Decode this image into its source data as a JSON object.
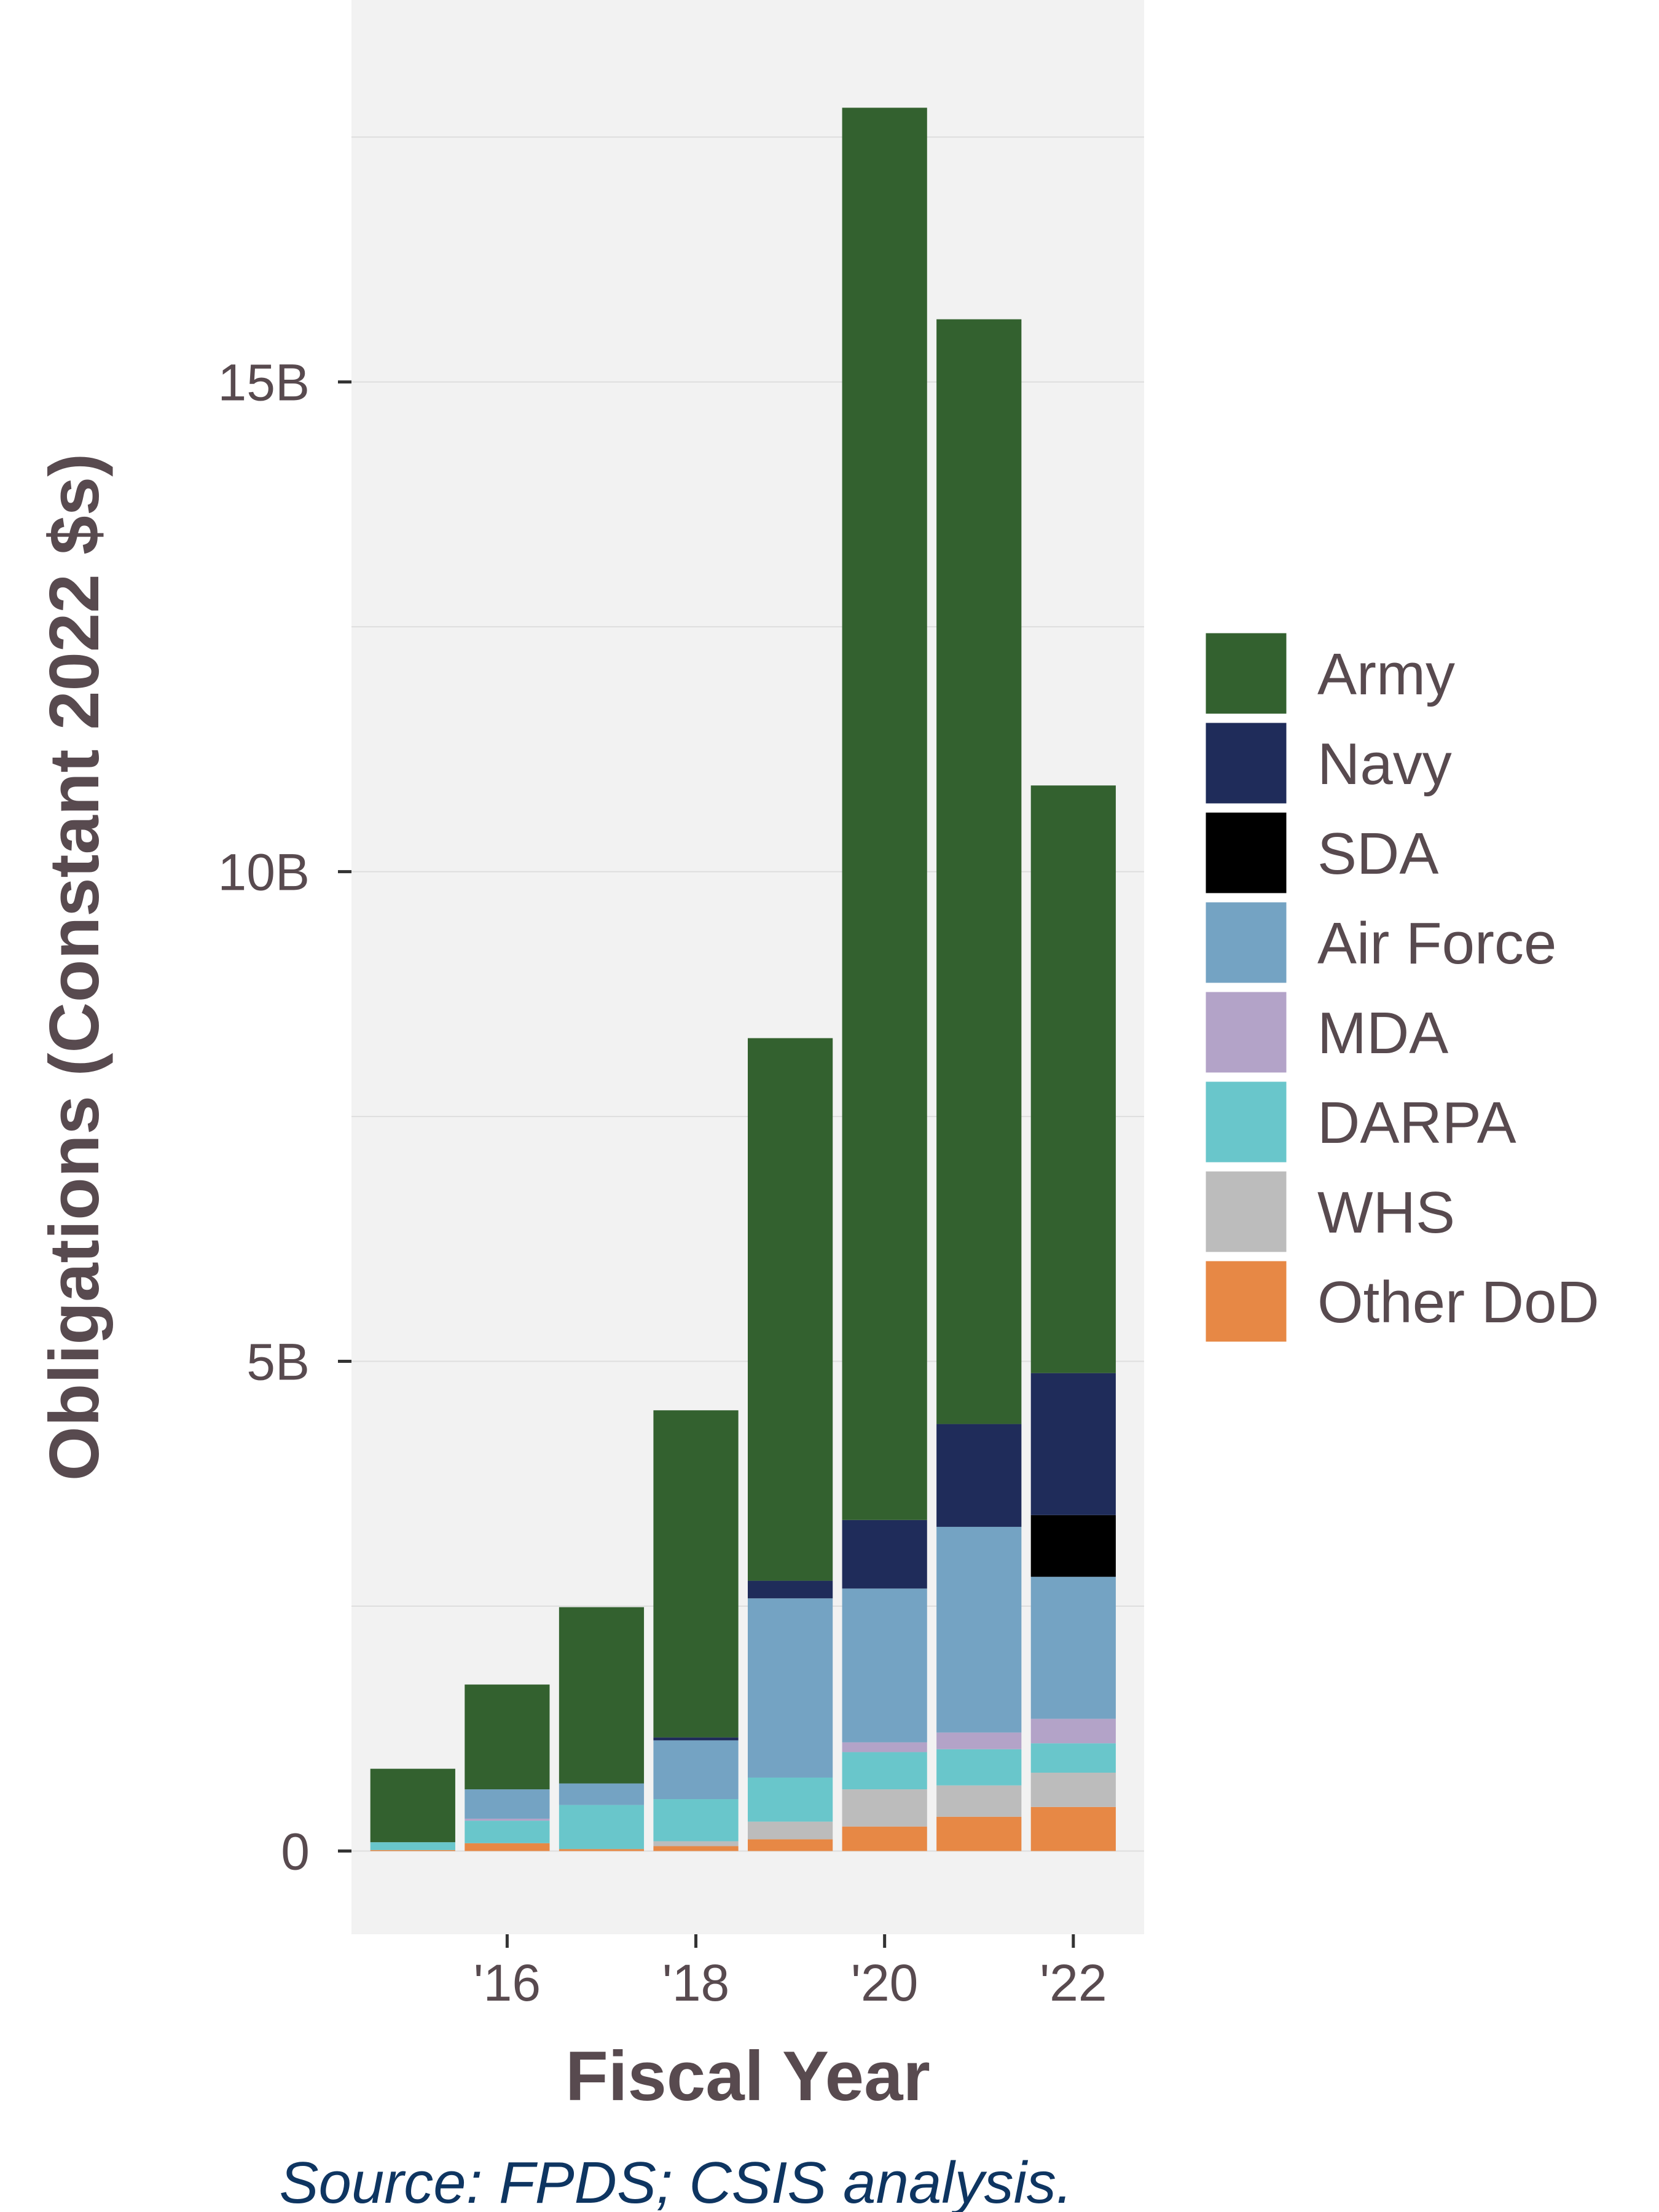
{
  "chart_data": {
    "type": "bar",
    "stacked": true,
    "x": [
      2015,
      2016,
      2017,
      2018,
      2019,
      2020,
      2021,
      2022
    ],
    "x_tick_values": [
      2016,
      2018,
      2020,
      2022
    ],
    "x_tick_labels": [
      "'16",
      "'18",
      "'20",
      "'22"
    ],
    "xlabel": "Fiscal Year",
    "ylabel": "Obligations (Constant 2022 $s)",
    "y_ticks": [
      0,
      5,
      10,
      15
    ],
    "y_tick_labels": [
      "0",
      "5B",
      "10B",
      "15B"
    ],
    "ylim": [
      -0.85,
      18.9
    ],
    "xlim": [
      2014.35,
      2022.75
    ],
    "y_unit": "billions",
    "grid": true,
    "legend_position": "right",
    "caption": "Source: FPDS; CSIS analysis.",
    "series": [
      {
        "name": "Other DoD",
        "color": "#e78845",
        "values": [
          0.01,
          0.08,
          0.02,
          0.05,
          0.12,
          0.25,
          0.35,
          0.45
        ]
      },
      {
        "name": "WHS",
        "color": "#bcbcbc",
        "values": [
          0.0,
          0.0,
          0.0,
          0.05,
          0.18,
          0.38,
          0.32,
          0.35
        ]
      },
      {
        "name": "DARPA",
        "color": "#69c6cb",
        "values": [
          0.08,
          0.23,
          0.45,
          0.43,
          0.45,
          0.38,
          0.37,
          0.3
        ]
      },
      {
        "name": "MDA",
        "color": "#b3a3c8",
        "values": [
          0.0,
          0.02,
          0.0,
          0.0,
          0.0,
          0.1,
          0.17,
          0.25
        ]
      },
      {
        "name": "Air Force",
        "color": "#74a3c3",
        "values": [
          0.0,
          0.3,
          0.22,
          0.6,
          1.83,
          1.57,
          2.1,
          1.45
        ]
      },
      {
        "name": "SDA",
        "color": "#000000",
        "values": [
          0.0,
          0.0,
          0.0,
          0.0,
          0.0,
          0.0,
          0.0,
          0.63
        ]
      },
      {
        "name": "Navy",
        "color": "#1f2c5a",
        "values": [
          0.0,
          0.0,
          0.0,
          0.03,
          0.18,
          0.7,
          1.05,
          1.45
        ]
      },
      {
        "name": "Army",
        "color": "#33612f",
        "values": [
          0.75,
          1.07,
          1.8,
          3.34,
          5.54,
          14.42,
          11.28,
          6.0
        ]
      }
    ],
    "legend_order": [
      "Army",
      "Navy",
      "SDA",
      "Air Force",
      "MDA",
      "DARPA",
      "WHS",
      "Other DoD"
    ]
  }
}
